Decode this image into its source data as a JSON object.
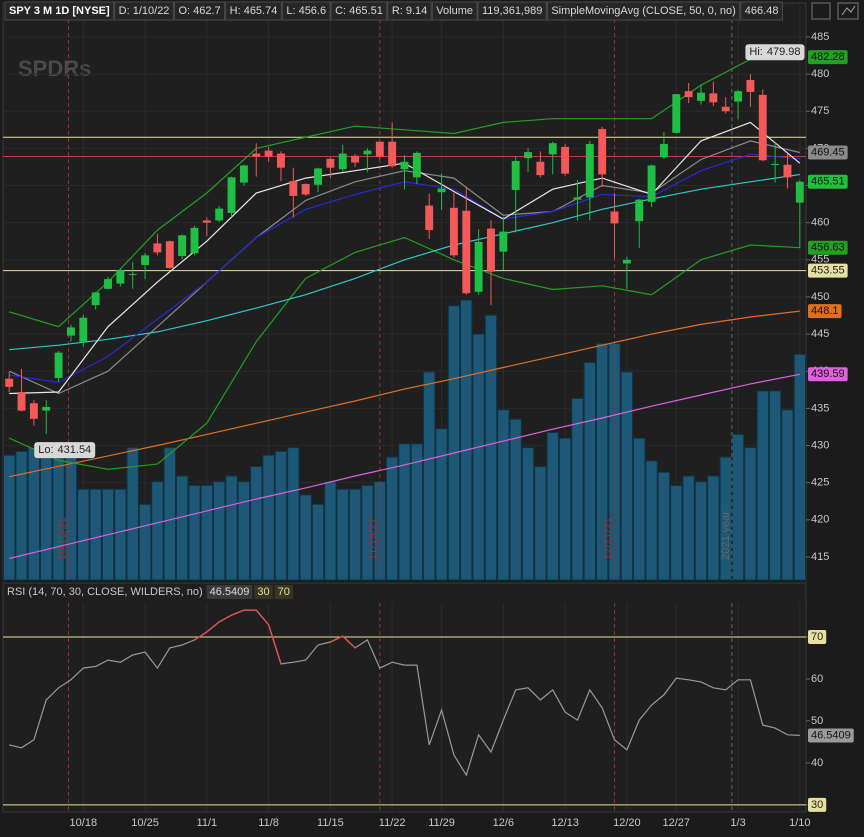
{
  "chart_data": [
    {
      "type": "candlestick",
      "header": [
        "SPY 3 M 1D [NYSE]",
        "D: 1/10/22",
        "O: 462.7",
        "H: 465.74",
        "L: 456.6",
        "C: 465.51",
        "R: 9.14",
        "Volume",
        "119,361,989",
        "SimpleMovingAvg (CLOSE, 50, 0, no)",
        "466.48"
      ],
      "logo": "SPDRs",
      "categories": [
        null,
        null,
        null,
        null,
        null,
        null,
        "10/18",
        null,
        null,
        null,
        null,
        "10/25",
        null,
        null,
        null,
        null,
        "11/1",
        null,
        null,
        null,
        null,
        "11/8",
        null,
        null,
        null,
        null,
        "11/15",
        null,
        null,
        null,
        null,
        "11/22",
        null,
        null,
        null,
        "11/29",
        null,
        null,
        null,
        null,
        "12/6",
        null,
        null,
        null,
        null,
        "12/13",
        null,
        null,
        null,
        null,
        "12/20",
        null,
        null,
        null,
        "12/27",
        null,
        null,
        null,
        null,
        "1/3",
        null,
        null,
        null,
        null,
        "1/10"
      ],
      "open": [
        439,
        437.2,
        435.7,
        434.7,
        439.1,
        444.8,
        443.97,
        448.9,
        451.1,
        451.8,
        453.1,
        454.3,
        457.2,
        457.5,
        455.5,
        455.9,
        460.3,
        460.3,
        461.3,
        465.4,
        469.3,
        469.7,
        469.3,
        465.6,
        465.2,
        465.1,
        468.6,
        467.2,
        469,
        469.2,
        470.9,
        470.9,
        467.2,
        466.1,
        462.3,
        464.1,
        462,
        461.6,
        450.7,
        459.2,
        456.1,
        464.4,
        468.7,
        468.2,
        469.2,
        470.2,
        463.1,
        463.4,
        472.6,
        461.5,
        454.5,
        460.2,
        462.8,
        468.8,
        472.1,
        477.7,
        476.4,
        477.4,
        475.6,
        476.3,
        479.2,
        477.2,
        467.9,
        467.8,
        462.7
      ],
      "high": [
        439.9,
        440.3,
        436.1,
        436.1,
        442.7,
        446.3,
        447.6,
        450.7,
        452.7,
        453.8,
        454.7,
        455.9,
        458.5,
        457.6,
        458.4,
        459.6,
        460.7,
        462.2,
        466.2,
        467.8,
        470.7,
        470.2,
        469.6,
        467.4,
        465.3,
        467.4,
        468.8,
        470.5,
        469.2,
        470,
        470.9,
        473.5,
        469.1,
        469.6,
        463.9,
        466.6,
        464,
        464.7,
        459.1,
        460.3,
        460.8,
        468.9,
        470,
        469.6,
        470.9,
        470.6,
        465.7,
        471,
        472.9,
        464,
        455.4,
        463.2,
        467.8,
        472.2,
        477.3,
        478.8,
        478.6,
        479,
        476.9,
        477.9,
        479.98,
        477.9,
        470.8,
        469.2,
        465.74
      ],
      "low": [
        437.2,
        434.6,
        432.7,
        431.54,
        438.6,
        444,
        443.3,
        448.3,
        451,
        451.4,
        451.1,
        452.4,
        455.6,
        453.8,
        455.1,
        455.6,
        458.2,
        460.1,
        460.8,
        464.99,
        466.2,
        468.2,
        465.6,
        460.7,
        463.6,
        464.1,
        466,
        466.9,
        467.5,
        466.8,
        468.5,
        467.4,
        464.5,
        465.2,
        457.8,
        461.7,
        455.3,
        450.3,
        450.3,
        448.9,
        453.6,
        458.7,
        466.8,
        466.1,
        466.5,
        466.3,
        460.3,
        460.3,
        464.8,
        455.3,
        451.1,
        456.6,
        462.1,
        468.6,
        472,
        476.1,
        475.9,
        475.7,
        474.7,
        473.9,
        475.6,
        468.3,
        465.4,
        464.6,
        456.6
      ],
      "close": [
        437.9,
        434.7,
        433.6,
        435.2,
        442.5,
        445.9,
        447.2,
        450.6,
        452.4,
        453.6,
        453.1,
        455.6,
        456,
        453.9,
        458.3,
        459.3,
        460,
        461.9,
        466.1,
        467.7,
        468.9,
        468.9,
        467.4,
        463.6,
        463.8,
        467.3,
        467.4,
        469.3,
        468.1,
        469.7,
        468.9,
        467.6,
        468.2,
        469.4,
        459,
        464.6,
        455.6,
        450.5,
        457.4,
        453.4,
        458.8,
        468.3,
        469.5,
        466.4,
        470.7,
        466.6,
        463.4,
        470.6,
        466.5,
        459.9,
        455,
        463.1,
        467.7,
        470.6,
        477.3,
        476.9,
        477.5,
        476.2,
        475,
        477.7,
        477.6,
        468.4,
        467.9,
        466.1,
        465.51
      ],
      "up_color": "#1fbf45",
      "down_color": "#f25a5a",
      "close_label_color": "#22c03a",
      "volume": {
        "values": [
          66000000,
          68000000,
          70000000,
          72000000,
          70000000,
          66000000,
          48000000,
          48000000,
          48000000,
          48000000,
          70000000,
          40000000,
          52000000,
          70000000,
          55000000,
          50000000,
          50000000,
          52000000,
          55000000,
          52000000,
          60000000,
          66000000,
          68000000,
          70000000,
          45000000,
          40000000,
          52000000,
          48000000,
          48000000,
          50000000,
          52000000,
          65000000,
          72000000,
          72000000,
          110000000,
          80000000,
          145000000,
          148000000,
          130000000,
          140000000,
          90000000,
          85000000,
          70000000,
          60000000,
          78000000,
          75000000,
          96000000,
          115000000,
          125000000,
          125000000,
          110000000,
          75000000,
          63000000,
          57000000,
          50000000,
          55000000,
          52000000,
          55000000,
          65000000,
          77000000,
          70000000,
          100000000,
          100000000,
          90000000,
          119361989
        ],
        "color": "#1d5876",
        "lim": [
          0,
          304000000
        ]
      },
      "ylim": [
        411.9,
        489.3
      ],
      "yticks": [
        415,
        420,
        425,
        430,
        435,
        440,
        445,
        450,
        455,
        460,
        465,
        470,
        475,
        480,
        485
      ],
      "grid": true,
      "series": [
        {
          "color": "#e060e0",
          "labeled": true,
          "x": [
            0,
            4,
            8,
            12,
            16,
            20,
            24,
            28,
            32,
            36,
            40,
            44,
            48,
            52,
            56,
            60,
            64
          ],
          "values": [
            414.8,
            416.4,
            418,
            419.6,
            421.2,
            422.8,
            424.3,
            425.9,
            427.4,
            429,
            430.6,
            432.2,
            433.7,
            435.3,
            436.8,
            438.3,
            439.59
          ]
        },
        {
          "color": "#e07020",
          "labeled": true,
          "x": [
            0,
            4,
            8,
            12,
            16,
            20,
            24,
            28,
            32,
            36,
            40,
            44,
            48,
            52,
            56,
            60,
            64
          ],
          "values": [
            425.8,
            427.2,
            428.6,
            430,
            431.5,
            433,
            434.5,
            436,
            437.6,
            439,
            440.5,
            442,
            443.5,
            445,
            446.3,
            447.3,
            448.1
          ]
        },
        {
          "color": "#22a022",
          "labeled": true,
          "x": [
            0,
            4,
            8,
            12,
            16,
            20,
            24,
            28,
            32,
            36,
            40,
            44,
            48,
            52,
            56,
            60,
            64
          ],
          "values": [
            431,
            428,
            426.8,
            427.5,
            433,
            444,
            452.5,
            456,
            458,
            455,
            452.5,
            451,
            451.5,
            450.3,
            455,
            457,
            456.63
          ]
        },
        {
          "color": "#22a022",
          "labeled": true,
          "x": [
            0,
            4,
            8,
            12,
            16,
            20,
            24,
            28,
            32,
            36,
            40,
            44,
            48,
            52,
            56,
            60,
            64
          ],
          "values": [
            448,
            446,
            452,
            459,
            464,
            470,
            471.5,
            473,
            472.5,
            472,
            473.5,
            474,
            474,
            474,
            478.5,
            482,
            482.28
          ]
        },
        {
          "color": "#30c8c8",
          "labeled": false,
          "x": [
            0,
            4,
            8,
            12,
            16,
            20,
            24,
            28,
            32,
            36,
            40,
            44,
            48,
            52,
            56,
            60,
            64
          ],
          "values": [
            442.9,
            443.5,
            444.3,
            445.3,
            446.8,
            448.5,
            450.3,
            452.5,
            455,
            457,
            458.5,
            460,
            461.8,
            463.2,
            464.5,
            465.5,
            466.48
          ]
        },
        {
          "color": "#8a8a8a",
          "labeled": true,
          "x": [
            0,
            4,
            8,
            12,
            16,
            20,
            24,
            28,
            32,
            36,
            40,
            44,
            48,
            52,
            56,
            60,
            64
          ],
          "values": [
            440,
            437,
            440,
            446,
            452,
            458,
            463,
            465.5,
            467,
            466,
            461,
            461.5,
            465,
            464,
            468.5,
            471,
            469.45
          ]
        },
        {
          "color": "#2a2ad8",
          "labeled": false,
          "x": [
            0,
            4,
            8,
            12,
            16,
            20,
            24,
            28,
            32,
            36,
            40,
            44,
            48,
            52,
            56,
            60,
            64
          ],
          "values": [
            439.5,
            438.5,
            442,
            447,
            452,
            458,
            461.8,
            463.8,
            465.5,
            464.5,
            460.5,
            461.5,
            463.8,
            463.5,
            467,
            469.2,
            468.6
          ]
        },
        {
          "color": "#e8e8e8",
          "labeled": false,
          "x": [
            0,
            4,
            8,
            12,
            16,
            20,
            24,
            28,
            32,
            36,
            40,
            44,
            48,
            52,
            56,
            60,
            64
          ],
          "values": [
            437,
            437.2,
            446,
            452,
            457.5,
            464,
            466,
            467,
            468,
            464.2,
            460.5,
            464.5,
            466,
            463.8,
            471,
            473.5,
            468
          ]
        }
      ],
      "price_lines": [
        {
          "value": 471.5,
          "color": "#e8e0a0",
          "labeled": false
        },
        {
          "value": 468.9,
          "color": "#c04040",
          "labeled": false
        },
        {
          "value": 453.55,
          "color": "#e8e0a0",
          "labeled": true
        }
      ],
      "markers": [
        {
          "x": 4.8,
          "label": "10/15/21",
          "color": "#a03030"
        },
        {
          "x": 30,
          "label": "11/19/21",
          "color": "#a03030"
        },
        {
          "x": 49,
          "label": "12/17/21",
          "color": "#a03030"
        },
        {
          "x": 58.5,
          "label": "2021 year",
          "color": "#666666"
        }
      ],
      "hi_label": "Hi:",
      "lo_label": "Lo:"
    },
    {
      "type": "line",
      "title": "RSI (14, 70, 30, CLOSE, WILDERS, no)",
      "values": [
        44.3,
        43.6,
        45.5,
        55,
        57.9,
        59.8,
        62.6,
        63,
        64.5,
        64,
        65.7,
        66.4,
        62.6,
        67.4,
        68.1,
        69.3,
        71.2,
        73.6,
        75.2,
        76.4,
        76.4,
        72.9,
        63.6,
        64,
        64.5,
        68.1,
        68.8,
        70.2,
        67.4,
        69.3,
        62.6,
        64,
        63.3,
        63.3,
        44.3,
        52.6,
        41.9,
        37.1,
        46.7,
        42.6,
        50.2,
        57.4,
        57.9,
        55,
        57.4,
        52.1,
        50.2,
        57.4,
        53.1,
        45.5,
        43.1,
        50.2,
        53.8,
        56.2,
        60.2,
        59.8,
        59.3,
        57.9,
        57.4,
        59.8,
        59.8,
        49,
        48.3,
        46.7,
        46.5409
      ],
      "color": "#9a9a9a",
      "over_color": "#e05050",
      "levels": [
        30,
        70
      ],
      "level_color": "#e8e0a0",
      "ylim": [
        28.3,
        78.1
      ],
      "yticks": [
        30,
        40,
        50,
        60,
        70
      ]
    }
  ]
}
